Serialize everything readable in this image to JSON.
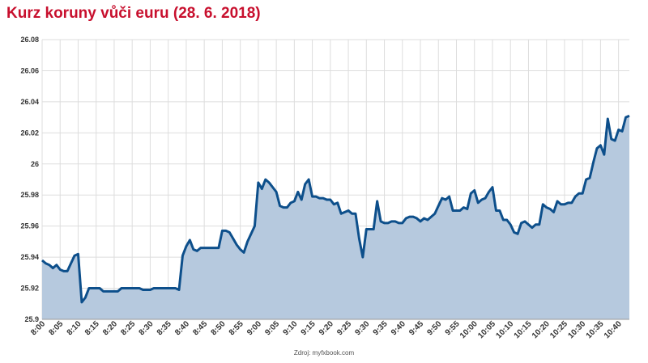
{
  "title": "Kurz koruny vůči euru (28. 6. 2018)",
  "source": "Zdroj: myfxbook.com",
  "colors": {
    "title": "#c8102e",
    "line": "#0d4f8b",
    "fill": "#b6c9de",
    "grid": "#dddddd"
  },
  "chart_data": {
    "type": "area",
    "title": "Kurz koruny vůči euru (28. 6. 2018)",
    "xlabel": "",
    "ylabel": "",
    "ylim": [
      25.9,
      26.08
    ],
    "yticks": [
      "26.08",
      "26.06",
      "26.04",
      "26.02",
      "26",
      "25.98",
      "25.96",
      "25.94",
      "25.92",
      "25.9"
    ],
    "xticks": [
      "8:00",
      "8:05",
      "8:10",
      "8:15",
      "8:20",
      "8:25",
      "8:30",
      "8:35",
      "8:40",
      "8:45",
      "8:50",
      "8:55",
      "9:00",
      "9:05",
      "9:10",
      "9:15",
      "9:20",
      "9:25",
      "9:30",
      "9:35",
      "9:40",
      "9:45",
      "9:50",
      "9:55",
      "10:00",
      "10:05",
      "10:10",
      "10:15",
      "10:20",
      "10:25",
      "10:30",
      "10:35",
      "10:40"
    ],
    "xrange_minutes": [
      0,
      163
    ],
    "grid": true,
    "series": [
      {
        "x": [
          0,
          1,
          2,
          3,
          4,
          5,
          6,
          7,
          8,
          9,
          10,
          11,
          12,
          13,
          14,
          15,
          16,
          17,
          18,
          19,
          20,
          21,
          22,
          23,
          24,
          25,
          26,
          27,
          28,
          29,
          30,
          31,
          32,
          33,
          34,
          35,
          36,
          37,
          38,
          39,
          40,
          41,
          42,
          43,
          44,
          45,
          46,
          47,
          48,
          49,
          50,
          51,
          52,
          53,
          54,
          55,
          56,
          57,
          58,
          59,
          60,
          61,
          62,
          63,
          64,
          65,
          66,
          67,
          68,
          69,
          70,
          71,
          72,
          73,
          74,
          75,
          76,
          77,
          78,
          79,
          80,
          81,
          82,
          83,
          84,
          85,
          86,
          87,
          88,
          89,
          90,
          91,
          92,
          93,
          94,
          95,
          96,
          97,
          98,
          99,
          100,
          101,
          102,
          103,
          104,
          105,
          106,
          107,
          108,
          109,
          110,
          111,
          112,
          113,
          114,
          115,
          116,
          117,
          118,
          119,
          120,
          121,
          122,
          123,
          124,
          125,
          126,
          127,
          128,
          129,
          130,
          131,
          132,
          133,
          134,
          135,
          136,
          137,
          138,
          139,
          140,
          141,
          142,
          143,
          144,
          145,
          146,
          147,
          148,
          149,
          150,
          151,
          152,
          153,
          154,
          155,
          156,
          157,
          158,
          159,
          160,
          161,
          162,
          163
        ],
        "values": [
          25.938,
          25.936,
          25.935,
          25.933,
          25.935,
          25.932,
          25.931,
          25.931,
          25.936,
          25.941,
          25.942,
          25.911,
          25.914,
          25.92,
          25.92,
          25.92,
          25.92,
          25.918,
          25.918,
          25.918,
          25.918,
          25.918,
          25.92,
          25.92,
          25.92,
          25.92,
          25.92,
          25.92,
          25.919,
          25.919,
          25.919,
          25.92,
          25.92,
          25.92,
          25.92,
          25.92,
          25.92,
          25.92,
          25.919,
          25.941,
          25.947,
          25.951,
          25.945,
          25.944,
          25.946,
          25.946,
          25.946,
          25.946,
          25.946,
          25.946,
          25.957,
          25.957,
          25.956,
          25.952,
          25.948,
          25.945,
          25.943,
          25.95,
          25.955,
          25.96,
          25.988,
          25.984,
          25.99,
          25.988,
          25.985,
          25.982,
          25.973,
          25.972,
          25.972,
          25.975,
          25.976,
          25.982,
          25.977,
          25.987,
          25.99,
          25.979,
          25.979,
          25.978,
          25.978,
          25.977,
          25.977,
          25.974,
          25.975,
          25.968,
          25.969,
          25.97,
          25.968,
          25.968,
          25.952,
          25.94,
          25.958,
          25.958,
          25.958,
          25.976,
          25.963,
          25.962,
          25.962,
          25.963,
          25.963,
          25.962,
          25.962,
          25.965,
          25.966,
          25.966,
          25.965,
          25.963,
          25.965,
          25.964,
          25.966,
          25.968,
          25.973,
          25.978,
          25.977,
          25.979,
          25.97,
          25.97,
          25.97,
          25.972,
          25.971,
          25.981,
          25.983,
          25.975,
          25.977,
          25.978,
          25.982,
          25.985,
          25.97,
          25.97,
          25.964,
          25.964,
          25.961,
          25.956,
          25.955,
          25.962,
          25.963,
          25.961,
          25.959,
          25.961,
          25.961,
          25.974,
          25.972,
          25.971,
          25.969,
          25.976,
          25.974,
          25.974,
          25.975,
          25.975,
          25.979,
          25.981,
          25.981,
          25.99,
          25.991,
          26.001,
          26.01,
          26.012,
          26.006,
          26.029,
          26.016,
          26.015,
          26.022,
          26.021,
          26.03,
          26.031
        ]
      }
    ]
  }
}
